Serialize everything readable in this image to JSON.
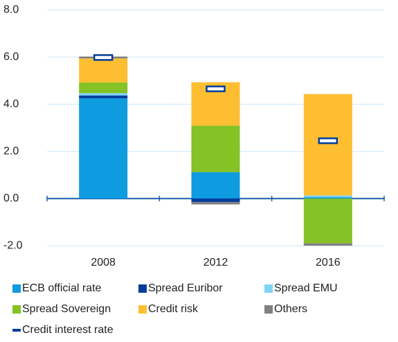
{
  "chart_data": {
    "type": "stacked-bar",
    "categories": [
      "2008",
      "2012",
      "2016"
    ],
    "series": [
      {
        "name": "ECB official rate",
        "color": "#0e9be0",
        "values": [
          4.25,
          1.12,
          0.05
        ]
      },
      {
        "name": "Spread Euribor",
        "color": "#003d9c",
        "values": [
          0.12,
          -0.15,
          0
        ]
      },
      {
        "name": "Spread EMU",
        "color": "#7fd3f5",
        "values": [
          0.1,
          0,
          0.08
        ]
      },
      {
        "name": "Spread Sovereign",
        "color": "#84c225",
        "values": [
          0.45,
          1.97,
          -1.9
        ]
      },
      {
        "name": "Credit risk",
        "color": "#fdbf31",
        "values": [
          1.02,
          1.84,
          4.3
        ]
      },
      {
        "name": "Others",
        "color": "#808080",
        "values": [
          0.08,
          -0.1,
          -0.1
        ]
      },
      {
        "name": "Credit interest rate",
        "color": "#003d9c",
        "type": "marker",
        "values": [
          5.98,
          4.65,
          2.45
        ]
      }
    ],
    "ylim": [
      -2.2,
      8.3
    ],
    "yticks": [
      {
        "value": -2,
        "label": "-2.0"
      },
      {
        "value": 0,
        "label": "0.0"
      },
      {
        "value": 2,
        "label": "2.0"
      },
      {
        "value": 4,
        "label": "4.0"
      },
      {
        "value": 6,
        "label": "6.0"
      },
      {
        "value": 8,
        "label": "8.0"
      }
    ],
    "grid": true
  }
}
